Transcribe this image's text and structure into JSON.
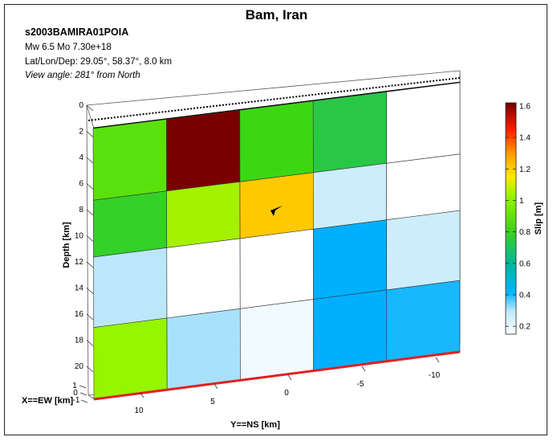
{
  "title": "Bam, Iran",
  "info": {
    "event_id": "s2003BAMIRA01POIA",
    "magnitude": "Mw 6.5    Mo 7.30e+18",
    "location": "Lat/Lon/Dep: 29.05°, 58.37°, 8.0 km",
    "view_angle": "View angle: 281° from North"
  },
  "chart_data": {
    "type": "heatmap",
    "axes": {
      "depth_label": "Depth [km]",
      "ns_label": "Y==NS [km]",
      "ew_label": "X==EW [km]",
      "depth_ticks": [
        "0",
        "2",
        "4",
        "6",
        "8",
        "10",
        "12",
        "14",
        "16",
        "18",
        "20"
      ],
      "ns_ticks": [
        "10",
        "5",
        "0",
        "-5",
        "-10"
      ],
      "ew_ticks": [
        "1",
        "0",
        "-1"
      ]
    },
    "colorbar": {
      "label": "Slip [m]",
      "range": [
        0.15,
        1.62
      ],
      "ticks": [
        "1.6",
        "1.4",
        "1.2",
        "1",
        "0.8",
        "0.6",
        "0.4",
        "0.2"
      ]
    },
    "patches": {
      "rows": 4,
      "cols": 5,
      "slip": [
        [
          0.72,
          1.62,
          0.68,
          0.58,
          0.15
        ],
        [
          0.64,
          0.82,
          1.02,
          0.22,
          0.0
        ],
        [
          0.24,
          0.0,
          0.0,
          0.4,
          0.22
        ],
        [
          0.8,
          0.26,
          0.17,
          0.4,
          0.38
        ]
      ]
    },
    "colors": {
      "surface_trace": "#e02020",
      "zero_slip": "#ffffff"
    },
    "hypocenter_marker": "arrow-icon"
  }
}
